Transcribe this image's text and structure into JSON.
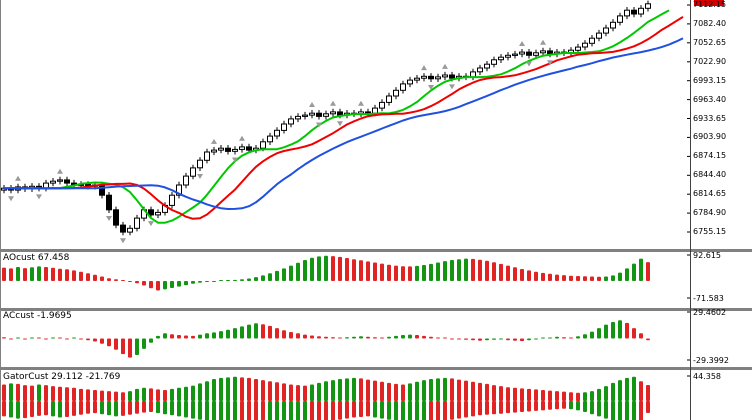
{
  "colors": {
    "background": "#FFFFFF",
    "up_candle": "#FFFFFF",
    "down_candle": "#000000",
    "candle_outline": "#000000",
    "alligator_lips": "#00C800",
    "alligator_teeth": "#F00000",
    "alligator_jaw": "#2050E0",
    "hist_up": "#139513",
    "hist_down": "#E02424",
    "divider": "#808080",
    "axis_line": "#404040",
    "fractal": "#9A9A9A",
    "price_marker": "#D40000"
  },
  "price_axis": {
    "labels": [
      "7112.15",
      "7082.40",
      "7052.65",
      "7022.90",
      "6993.15",
      "6963.40",
      "6933.65",
      "6903.90",
      "6874.15",
      "6844.40",
      "6814.65",
      "6784.90",
      "6755.15"
    ]
  },
  "panes": [
    {
      "label": "AOcust 67.458",
      "scale_top": "92.615",
      "scale_bottom": "-71.583"
    },
    {
      "label": "ACcust -1.9695",
      "scale_top": "29.4602",
      "scale_bottom": "-29.3992"
    },
    {
      "label": "GatorCust 29.112 -21.769",
      "scale_top": "44.358"
    }
  ],
  "chart_data": {
    "type": "candlestick",
    "title": "",
    "xlabel": "",
    "ylabel": "price",
    "price_axis_ticks": [
      7112.15,
      7082.4,
      7052.65,
      7022.9,
      6993.15,
      6963.4,
      6933.65,
      6903.9,
      6874.15,
      6844.4,
      6814.65,
      6784.9,
      6755.15
    ],
    "bar_count": 93,
    "closes": [
      6824,
      6821,
      6826,
      6823,
      6827,
      6824,
      6832,
      6835,
      6837,
      6832,
      6829,
      6830,
      6827,
      6829,
      6813,
      6790,
      6766,
      6755,
      6761,
      6777,
      6790,
      6782,
      6786,
      6797,
      6813,
      6829,
      6843,
      6856,
      6868,
      6881,
      6884,
      6887,
      6882,
      6885,
      6889,
      6884,
      6887,
      6897,
      6906,
      6915,
      6925,
      6933,
      6937,
      6939,
      6942,
      6937,
      6941,
      6944,
      6939,
      6942,
      6941,
      6944,
      6942,
      6950,
      6959,
      6969,
      6978,
      6988,
      6994,
      6997,
      7000,
      6996,
      6999,
      7002,
      6997,
      7000,
      6999,
      7007,
      7013,
      7019,
      7026,
      7030,
      7033,
      7035,
      7038,
      7033,
      7037,
      7040,
      7035,
      7038,
      7037,
      7041,
      7046,
      7052,
      7060,
      7068,
      7076,
      7085,
      7095,
      7104,
      7098,
      7107,
      7114
    ],
    "overlays": [
      {
        "name": "Alligator Lips",
        "period": 5,
        "shift": 3,
        "color_key": "alligator_lips"
      },
      {
        "name": "Alligator Teeth",
        "period": 8,
        "shift": 5,
        "color_key": "alligator_teeth"
      },
      {
        "name": "Alligator Jaw",
        "period": 13,
        "shift": 8,
        "color_key": "alligator_jaw"
      }
    ],
    "fractals": {
      "up": [
        2,
        8,
        30,
        34,
        44,
        47,
        51,
        60,
        63,
        74,
        77
      ],
      "down": [
        1,
        5,
        15,
        17,
        21,
        28,
        33,
        45,
        48,
        61,
        64,
        75,
        78
      ]
    },
    "indicator_panes": [
      {
        "name": "AOcust",
        "current_value": 67.458,
        "scale_max": 92.615,
        "scale_min": -71.583,
        "values": [
          48,
          45,
          50,
          46,
          49,
          52,
          50,
          47,
          44,
          42,
          38,
          33,
          28,
          22,
          16,
          10,
          6,
          3,
          -2,
          -8,
          -16,
          -26,
          -34,
          -30,
          -25,
          -20,
          -15,
          -10,
          -6,
          -3,
          -1,
          1,
          2,
          4,
          6,
          9,
          14,
          20,
          28,
          36,
          45,
          55,
          65,
          75,
          83,
          88,
          90,
          89,
          86,
          82,
          78,
          74,
          70,
          66,
          62,
          58,
          55,
          53,
          52,
          54,
          57,
          61,
          66,
          71,
          75,
          78,
          80,
          79,
          76,
          72,
          67,
          61,
          55,
          49,
          43,
          38,
          33,
          29,
          26,
          23,
          21,
          19,
          18,
          17,
          16,
          15,
          16,
          20,
          30,
          45,
          62,
          80,
          67.458
        ]
      },
      {
        "name": "ACcust",
        "current_value": -1.9695,
        "scale_max": 29.4602,
        "scale_min": -29.3992,
        "values": [
          1.5,
          -1,
          0.8,
          -0.6,
          1.2,
          0.5,
          -0.8,
          1,
          0.6,
          -1.2,
          0.8,
          -0.5,
          -2,
          -3.5,
          -6,
          -9,
          -13,
          -18,
          -22,
          -19,
          -12,
          -5,
          3,
          6,
          5,
          4,
          3.5,
          3,
          4.5,
          6,
          7,
          8.5,
          10,
          12,
          14,
          16,
          17.5,
          16.5,
          14.5,
          12,
          9.5,
          7.5,
          6,
          4.5,
          3.5,
          2.5,
          2,
          1.5,
          1,
          1.5,
          2,
          2.5,
          2,
          1.5,
          1,
          2,
          3,
          4,
          4.5,
          4,
          3,
          2,
          1,
          0.5,
          -0.5,
          -1,
          -1.5,
          -2,
          -2.5,
          -2,
          -1.5,
          -1,
          -2,
          -2.5,
          -3,
          -2,
          -1,
          0.5,
          1,
          2,
          1.5,
          1,
          2.5,
          5,
          8,
          12,
          16,
          19,
          21,
          18,
          12,
          6,
          -1.9695
        ]
      },
      {
        "name": "GatorCust",
        "current_value_upper": 29.112,
        "current_value_lower": -21.769,
        "scale_max": 44.358,
        "values_upper": [
          30,
          32,
          31,
          29,
          28,
          30,
          29,
          27,
          26,
          25,
          24,
          22,
          21,
          20,
          19,
          18,
          17,
          16,
          18,
          22,
          24,
          23,
          21,
          20,
          22,
          24,
          26,
          28,
          32,
          36,
          40,
          42,
          43,
          44,
          43,
          42,
          40,
          38,
          36,
          34,
          32,
          30,
          29,
          28,
          30,
          33,
          36,
          38,
          40,
          41,
          42,
          41,
          39,
          37,
          35,
          33,
          31,
          30,
          32,
          35,
          38,
          40,
          41,
          42,
          41,
          39,
          37,
          35,
          33,
          31,
          29,
          27,
          25,
          24,
          23,
          22,
          21,
          20,
          19,
          18,
          17,
          16,
          15,
          16,
          18,
          22,
          27,
          33,
          38,
          42,
          44,
          36,
          29.112
        ],
        "values_lower": [
          -28,
          -30,
          -32,
          -31,
          -29,
          -27,
          -26,
          -28,
          -30,
          -29,
          -27,
          -25,
          -23,
          -22,
          -24,
          -26,
          -28,
          -27,
          -25,
          -23,
          -21,
          -20,
          -22,
          -24,
          -26,
          -28,
          -30,
          -32,
          -34,
          -36,
          -38,
          -40,
          -41,
          -42,
          -41,
          -39,
          -37,
          -35,
          -36,
          -38,
          -40,
          -42,
          -43,
          -44,
          -42,
          -40,
          -38,
          -36,
          -34,
          -32,
          -30,
          -29,
          -28,
          -30,
          -32,
          -34,
          -36,
          -38,
          -39,
          -40,
          -41,
          -40,
          -38,
          -36,
          -34,
          -32,
          -30,
          -28,
          -26,
          -25,
          -24,
          -23,
          -22,
          -21,
          -20,
          -19,
          -18,
          -17,
          -16,
          -15,
          -14,
          -15,
          -17,
          -20,
          -24,
          -28,
          -32,
          -36,
          -40,
          -43,
          -44,
          -42,
          -21.769
        ]
      }
    ]
  }
}
